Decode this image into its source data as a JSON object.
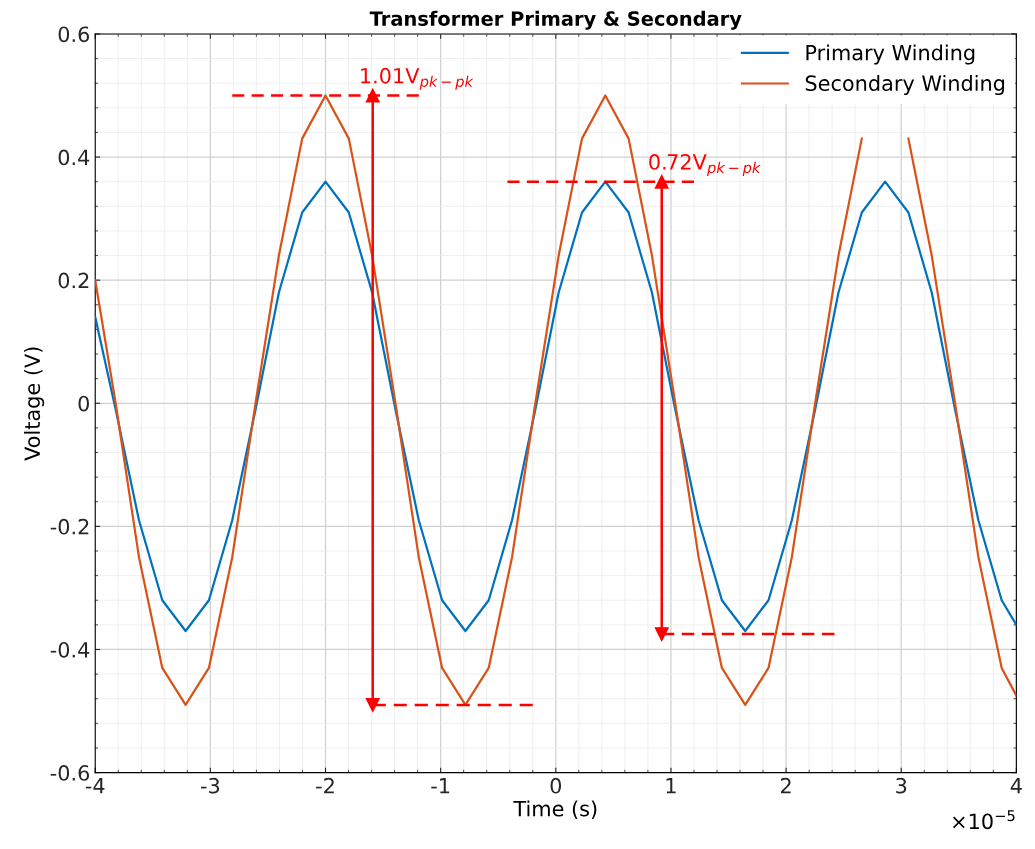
{
  "chart_data": {
    "type": "line",
    "title": "Transformer Primary & Secondary",
    "xlabel": "Time (s)",
    "ylabel": "Voltage (V)",
    "xlim": [
      -4,
      4
    ],
    "xticks": [
      -4,
      -3,
      -2,
      -1,
      0,
      1,
      2,
      3,
      4
    ],
    "ylim": [
      -0.6,
      0.6
    ],
    "yticks": [
      -0.6,
      -0.4,
      -0.2,
      0,
      0.2,
      0.4,
      0.6
    ],
    "grid": true,
    "legend": "top right",
    "line_style": "solid",
    "x": [
      -4,
      -3.8225,
      -3.62,
      -3.4175,
      -3.215,
      -3.0125,
      -2.81,
      -2.6075,
      -2.405,
      -2.2025,
      -2.0,
      -1.7975,
      -1.595,
      -1.3925,
      -1.19,
      -0.9875,
      -0.785,
      -0.5825,
      -0.38,
      -0.1775,
      0.025,
      0.2275,
      0.43,
      0.6325,
      0.835,
      1.0375,
      1.24,
      1.4425,
      1.645,
      1.8475,
      2.05,
      2.2525,
      2.455,
      2.6575,
      2.86,
      3.0625,
      3.265,
      3.4675,
      3.67,
      3.8725,
      4
    ],
    "series": [
      {
        "name": "Primary Winding",
        "color": "#0072bd",
        "values": [
          0.14,
          -0.01,
          -0.19,
          -0.32,
          -0.37,
          -0.32,
          -0.19,
          -0.01,
          0.18,
          0.31,
          0.36,
          0.31,
          0.18,
          -0.01,
          -0.19,
          -0.32,
          -0.37,
          -0.32,
          -0.19,
          -0.01,
          0.18,
          0.31,
          0.36,
          0.31,
          0.18,
          -0.01,
          -0.19,
          -0.32,
          -0.37,
          -0.32,
          -0.19,
          -0.01,
          0.18,
          0.31,
          0.36,
          0.31,
          0.18,
          -0.01,
          -0.19,
          -0.32,
          -0.36
        ]
      },
      {
        "name": "Secondary Winding",
        "color": "#d95319",
        "values": [
          0.2,
          0.0,
          -0.25,
          -0.43,
          -0.49,
          -0.43,
          -0.25,
          0.0,
          0.24,
          0.43,
          0.5,
          0.43,
          0.24,
          0.0,
          -0.25,
          -0.43,
          -0.49,
          -0.43,
          -0.25,
          0.0,
          0.24,
          0.43,
          0.5,
          0.43,
          0.24,
          0.0,
          -0.25,
          -0.43,
          -0.49,
          -0.43,
          -0.25,
          0.0,
          0.24,
          0.43,
          null,
          0.43,
          0.24,
          0.0,
          -0.25,
          -0.43,
          -0.475
        ]
      },
      {
        "color": "#ff0000",
        "line_style": "dashed",
        "x": [
          -2.81,
          -1.19
        ],
        "values": [
          0.5,
          0.5
        ]
      },
      {
        "color": "#ff0000",
        "line_style": "dashed",
        "x": [
          -1.59,
          -0.2
        ],
        "values": [
          -0.49,
          -0.49
        ]
      },
      {
        "color": "#ff0000",
        "line_style": "solid",
        "marker": "triangle",
        "x": [
          -1.59,
          -1.59
        ],
        "values": [
          -0.49,
          0.5
        ]
      },
      {
        "color": "#ff0000",
        "line_style": "dashed",
        "x": [
          -0.42,
          1.2
        ],
        "values": [
          0.36,
          0.36
        ]
      },
      {
        "color": "#ff0000",
        "line_style": "dashed",
        "x": [
          0.92,
          2.42
        ],
        "values": [
          -0.375,
          -0.375
        ]
      },
      {
        "color": "#ff0000",
        "line_style": "solid",
        "marker": "triangle",
        "x": [
          0.92,
          0.92
        ],
        "values": [
          -0.375,
          0.36
        ]
      }
    ],
    "annotations": [
      "1.01V$_{pk−pk}$",
      "0.72V$_{pk−pk}$",
      "×10$^{−5}$"
    ]
  }
}
